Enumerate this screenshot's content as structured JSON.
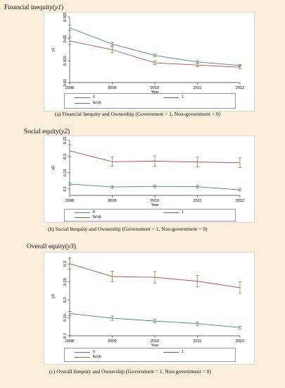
{
  "colors": {
    "series_0": "#4a7aa8",
    "series_1": "#b24a52",
    "ci": "#5a8a2a"
  },
  "chart_data": [
    {
      "type": "line",
      "title": "Financial inequity(",
      "title_var": "y1",
      "title_close": ")",
      "xlabel": "Year",
      "ylabel": "y1",
      "x": [
        2008,
        2009,
        2010,
        2011,
        2012
      ],
      "x_ticks": [
        "2008",
        "2009",
        "2010",
        "2011",
        "2012"
      ],
      "ylim": [
        0.01,
        0.025
      ],
      "y_ticks": [
        "0.01",
        "0.015",
        "0.02",
        "0.025"
      ],
      "series": [
        {
          "name": "0",
          "values": [
            0.0225,
            0.0188,
            0.0162,
            0.0147,
            0.0139
          ],
          "lower": [
            0.0219,
            0.0184,
            0.0159,
            0.0144,
            0.0137
          ],
          "upper": [
            0.0231,
            0.0192,
            0.0165,
            0.015,
            0.0141
          ]
        },
        {
          "name": "1",
          "values": [
            0.0195,
            0.0175,
            0.0145,
            0.014,
            0.0135
          ],
          "lower": [
            0.0187,
            0.0168,
            0.0141,
            0.0136,
            0.0131
          ],
          "upper": [
            0.0203,
            0.0182,
            0.0149,
            0.0144,
            0.0139
          ]
        }
      ],
      "legend": [
        "0",
        "1",
        "lb/ub"
      ],
      "caption": "(a)  Financial Inequity and Ownership (Government = 1, Non-government = 0)"
    },
    {
      "type": "line",
      "title": "Social equity(",
      "title_var": "y2",
      "title_close": ")",
      "xlabel": "Year",
      "ylabel": "y2",
      "x": [
        2008,
        2009,
        2010,
        2011,
        2012
      ],
      "x_ticks": [
        "2008",
        "2009",
        "2010",
        "2011",
        "2012"
      ],
      "ylim": [
        0.08,
        0.25
      ],
      "y_ticks": [
        "0.1",
        "0.15",
        "0.2",
        "0.25"
      ],
      "series": [
        {
          "name": "0",
          "values": [
            0.115,
            0.106,
            0.108,
            0.107,
            0.097
          ],
          "lower": [
            0.111,
            0.102,
            0.104,
            0.103,
            0.094
          ],
          "upper": [
            0.119,
            0.11,
            0.112,
            0.111,
            0.1
          ]
        },
        {
          "name": "1",
          "values": [
            0.218,
            0.184,
            0.186,
            0.183,
            0.181
          ],
          "lower": [
            0.2,
            0.17,
            0.17,
            0.168,
            0.166
          ],
          "upper": [
            0.236,
            0.198,
            0.202,
            0.198,
            0.196
          ]
        }
      ],
      "legend": [
        "0",
        "1",
        "lb/ub"
      ],
      "caption": "(b) Social Inequity and Ownership    (Government = 1, Non-government = 0)"
    },
    {
      "type": "line",
      "title": "Overall equity(",
      "title_var": "y3",
      "title_close": ")",
      "xlabel": "Year",
      "ylabel": "y3",
      "x": [
        2008,
        2009,
        2010,
        2011,
        2012
      ],
      "x_ticks": [
        "2008",
        "2009",
        "2010",
        "2011",
        "2012"
      ],
      "ylim": [
        0.1,
        0.32
      ],
      "y_ticks": [
        "0.1",
        "0.15",
        "0.2",
        "0.25",
        "0.3"
      ],
      "series": [
        {
          "name": "0",
          "values": [
            0.162,
            0.149,
            0.141,
            0.134,
            0.123
          ],
          "lower": [
            0.156,
            0.143,
            0.136,
            0.129,
            0.119
          ],
          "upper": [
            0.168,
            0.155,
            0.146,
            0.139,
            0.127
          ]
        },
        {
          "name": "1",
          "values": [
            0.301,
            0.265,
            0.263,
            0.252,
            0.234
          ],
          "lower": [
            0.286,
            0.25,
            0.247,
            0.236,
            0.218
          ],
          "upper": [
            0.316,
            0.28,
            0.279,
            0.268,
            0.25
          ]
        }
      ],
      "legend": [
        "0",
        "1",
        "lb/ub"
      ],
      "caption": "(c) Overall Inequity and Ownership (Government = 1, Non-government = 0)"
    }
  ]
}
